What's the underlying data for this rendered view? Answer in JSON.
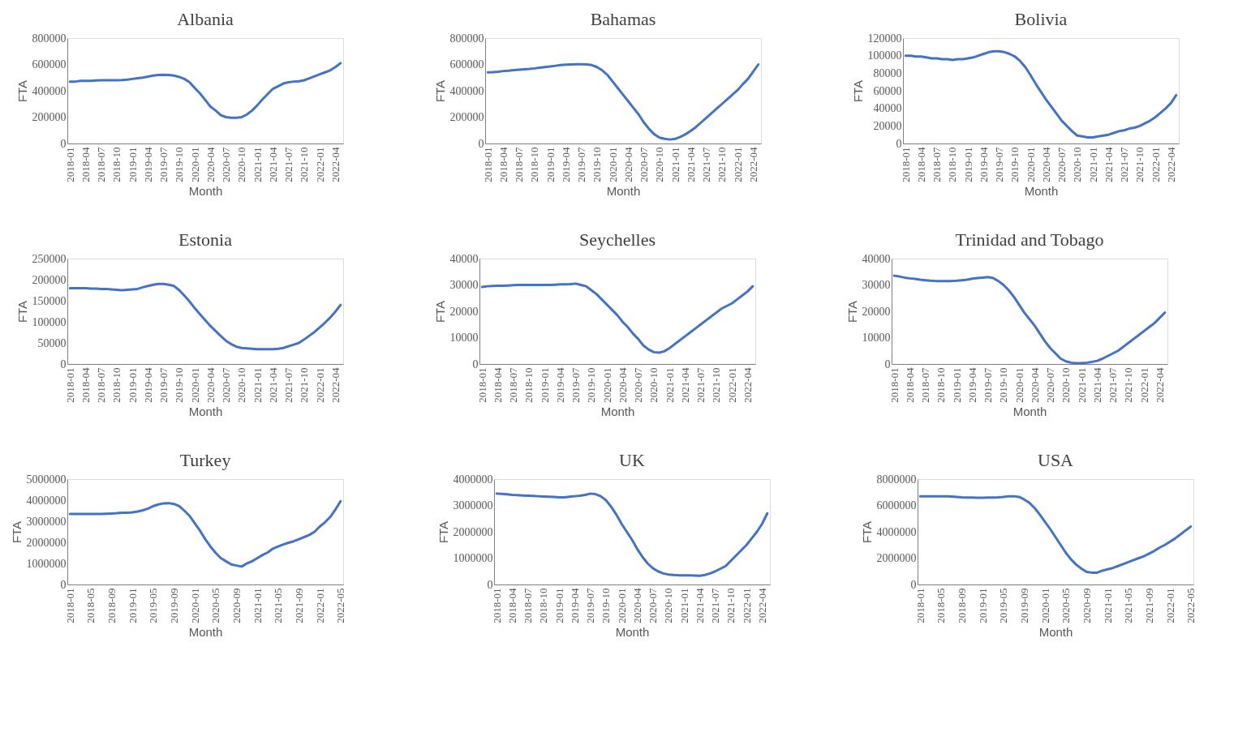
{
  "chart_data": [
    {
      "type": "line",
      "title": "Albania",
      "xlabel": "Month",
      "ylabel": "FTA",
      "grid": false,
      "ylim": [
        0,
        800000
      ],
      "yticks": [
        0,
        200000,
        400000,
        600000,
        800000
      ],
      "categories": [
        "2018-01",
        null,
        null,
        "2018-04",
        null,
        null,
        "2018-07",
        null,
        null,
        "2018-10",
        null,
        null,
        "2019-01",
        null,
        null,
        "2019-04",
        null,
        null,
        "2019-07",
        null,
        null,
        "2019-10",
        null,
        null,
        "2020-01",
        null,
        null,
        "2020-04",
        null,
        null,
        "2020-07",
        null,
        null,
        "2020-10",
        null,
        null,
        "2021-01",
        null,
        null,
        "2021-04",
        null,
        null,
        "2021-07",
        null,
        null,
        "2021-10",
        null,
        null,
        "2022-01",
        null,
        null,
        "2022-04",
        null
      ],
      "series": [
        {
          "color": "#4472c4",
          "values": [
            470000,
            470000,
            475000,
            475000,
            475000,
            478000,
            480000,
            480000,
            480000,
            480000,
            482000,
            485000,
            490000,
            495000,
            500000,
            508000,
            515000,
            520000,
            522000,
            520000,
            515000,
            505000,
            490000,
            465000,
            420000,
            380000,
            330000,
            280000,
            250000,
            215000,
            200000,
            195000,
            195000,
            200000,
            220000,
            250000,
            290000,
            335000,
            375000,
            415000,
            435000,
            455000,
            465000,
            470000,
            472000,
            480000,
            495000,
            510000,
            525000,
            540000,
            555000,
            580000,
            610000
          ]
        }
      ]
    },
    {
      "type": "line",
      "title": "Bahamas",
      "xlabel": "Month",
      "ylabel": "FTA",
      "grid": false,
      "ylim": [
        0,
        800000
      ],
      "yticks": [
        0,
        200000,
        400000,
        600000,
        800000
      ],
      "categories": [
        "2018-01",
        null,
        null,
        "2018-04",
        null,
        null,
        "2018-07",
        null,
        null,
        "2018-10",
        null,
        null,
        "2019-01",
        null,
        null,
        "2019-04",
        null,
        null,
        "2019-07",
        null,
        null,
        "2019-10",
        null,
        null,
        "2020-01",
        null,
        null,
        "2020-04",
        null,
        null,
        "2020-07",
        null,
        null,
        "2020-10",
        null,
        null,
        "2021-01",
        null,
        null,
        "2021-04",
        null,
        null,
        "2021-07",
        null,
        null,
        "2021-10",
        null,
        null,
        "2022-01",
        null,
        null,
        "2022-04",
        null
      ],
      "series": [
        {
          "color": "#4472c4",
          "values": [
            540000,
            542000,
            545000,
            550000,
            553000,
            557000,
            560000,
            563000,
            566000,
            570000,
            575000,
            580000,
            585000,
            590000,
            595000,
            598000,
            600000,
            602000,
            602000,
            600000,
            595000,
            580000,
            555000,
            520000,
            470000,
            420000,
            370000,
            320000,
            270000,
            220000,
            160000,
            110000,
            70000,
            45000,
            35000,
            30000,
            35000,
            50000,
            70000,
            95000,
            125000,
            160000,
            195000,
            230000,
            265000,
            300000,
            335000,
            370000,
            405000,
            450000,
            490000,
            545000,
            600000
          ]
        }
      ]
    },
    {
      "type": "line",
      "title": "Bolivia",
      "xlabel": "Month",
      "ylabel": "FTA",
      "grid": false,
      "ylim": [
        0,
        120000
      ],
      "yticks": [
        0,
        20000,
        40000,
        60000,
        80000,
        100000,
        120000
      ],
      "categories": [
        "2018-01",
        null,
        null,
        "2018-04",
        null,
        null,
        "2018-07",
        null,
        null,
        "2018-10",
        null,
        null,
        "2019-01",
        null,
        null,
        "2019-04",
        null,
        null,
        "2019-07",
        null,
        null,
        "2019-10",
        null,
        null,
        "2020-01",
        null,
        null,
        "2020-04",
        null,
        null,
        "2020-07",
        null,
        null,
        "2020-10",
        null,
        null,
        "2021-01",
        null,
        null,
        "2021-04",
        null,
        null,
        "2021-07",
        null,
        null,
        "2021-10",
        null,
        null,
        "2022-01",
        null,
        null,
        "2022-04",
        null
      ],
      "series": [
        {
          "color": "#4472c4",
          "values": [
            100000,
            100000,
            99000,
            99000,
            98000,
            97000,
            97000,
            96000,
            96000,
            95000,
            96000,
            96000,
            97000,
            98000,
            100000,
            102000,
            104000,
            105000,
            105000,
            104000,
            102000,
            99000,
            94000,
            87000,
            78000,
            68000,
            59000,
            50000,
            42000,
            34000,
            26000,
            20000,
            14000,
            9000,
            8000,
            7000,
            7000,
            8000,
            9000,
            10000,
            12000,
            14000,
            15000,
            17000,
            18000,
            20000,
            23000,
            26000,
            30000,
            35000,
            40000,
            46000,
            55000
          ]
        }
      ]
    },
    {
      "type": "line",
      "title": "Estonia",
      "xlabel": "Month",
      "ylabel": "FTA",
      "grid": false,
      "ylim": [
        0,
        250000
      ],
      "yticks": [
        0,
        50000,
        100000,
        150000,
        200000,
        250000
      ],
      "categories": [
        "2018-01",
        null,
        null,
        "2018-04",
        null,
        null,
        "2018-07",
        null,
        null,
        "2018-10",
        null,
        null,
        "2019-01",
        null,
        null,
        "2019-04",
        null,
        null,
        "2019-07",
        null,
        null,
        "2019-10",
        null,
        null,
        "2020-01",
        null,
        null,
        "2020-04",
        null,
        null,
        "2020-07",
        null,
        null,
        "2020-10",
        null,
        null,
        "2021-01",
        null,
        null,
        "2021-04",
        null,
        null,
        "2021-07",
        null,
        null,
        "2021-10",
        null,
        null,
        "2022-01",
        null,
        null,
        "2022-04",
        null
      ],
      "series": [
        {
          "color": "#4472c4",
          "values": [
            180000,
            180000,
            180000,
            180000,
            179000,
            179000,
            178000,
            178000,
            177000,
            176000,
            175000,
            176000,
            177000,
            178000,
            182000,
            185000,
            188000,
            190000,
            190000,
            188000,
            185000,
            175000,
            162000,
            148000,
            132000,
            118000,
            104000,
            90000,
            78000,
            66000,
            55000,
            47000,
            41000,
            38000,
            37000,
            36000,
            35000,
            35000,
            35000,
            35000,
            36000,
            38000,
            42000,
            46000,
            50000,
            58000,
            67000,
            76000,
            87000,
            98000,
            110000,
            124000,
            140000
          ]
        }
      ]
    },
    {
      "type": "line",
      "title": "Seychelles",
      "xlabel": "Month",
      "ylabel": "FTA",
      "grid": false,
      "ylim": [
        0,
        40000
      ],
      "yticks": [
        0,
        10000,
        20000,
        30000,
        40000
      ],
      "categories": [
        "2018-01",
        null,
        null,
        "2018-04",
        null,
        null,
        "2018-07",
        null,
        null,
        "2018-10",
        null,
        null,
        "2019-01",
        null,
        null,
        "2019-04",
        null,
        null,
        "2019-07",
        null,
        null,
        "2019-10",
        null,
        null,
        "2020-01",
        null,
        null,
        "2020-04",
        null,
        null,
        "2020-07",
        null,
        null,
        "2020-10",
        null,
        null,
        "2021-01",
        null,
        null,
        "2021-04",
        null,
        null,
        "2021-07",
        null,
        null,
        "2021-10",
        null,
        null,
        "2022-01",
        null,
        null,
        "2022-04",
        null
      ],
      "series": [
        {
          "color": "#4472c4",
          "values": [
            29200,
            29500,
            29600,
            29700,
            29700,
            29800,
            29900,
            30000,
            30000,
            30000,
            30000,
            30000,
            30000,
            30000,
            30100,
            30200,
            30200,
            30300,
            30500,
            30000,
            29500,
            28000,
            26500,
            24500,
            22500,
            20500,
            18500,
            16000,
            14000,
            11500,
            9500,
            7000,
            5500,
            4500,
            4300,
            4800,
            6000,
            7500,
            9000,
            10500,
            12000,
            13500,
            15000,
            16500,
            18000,
            19500,
            21000,
            22000,
            23000,
            24500,
            26000,
            27500,
            29500
          ]
        }
      ]
    },
    {
      "type": "line",
      "title": "Trinidad and Tobago",
      "xlabel": "Month",
      "ylabel": "FTA",
      "grid": false,
      "ylim": [
        0,
        40000
      ],
      "yticks": [
        0,
        10000,
        20000,
        30000,
        40000
      ],
      "categories": [
        "2018-01",
        null,
        null,
        "2018-04",
        null,
        null,
        "2018-07",
        null,
        null,
        "2018-10",
        null,
        null,
        "2019-01",
        null,
        null,
        "2019-04",
        null,
        null,
        "2019-07",
        null,
        null,
        "2019-10",
        null,
        null,
        "2020-01",
        null,
        null,
        "2020-04",
        null,
        null,
        "2020-07",
        null,
        null,
        "2020-10",
        null,
        null,
        "2021-01",
        null,
        null,
        "2021-04",
        null,
        null,
        "2021-07",
        null,
        null,
        "2021-10",
        null,
        null,
        "2022-01",
        null,
        null,
        "2022-04",
        null
      ],
      "series": [
        {
          "color": "#4472c4",
          "values": [
            33500,
            33200,
            32800,
            32500,
            32300,
            32000,
            31800,
            31600,
            31500,
            31500,
            31500,
            31500,
            31600,
            31800,
            32000,
            32400,
            32600,
            32800,
            33000,
            32600,
            31500,
            30000,
            28000,
            25500,
            22500,
            19500,
            17000,
            14500,
            11500,
            8500,
            6000,
            4000,
            2000,
            1000,
            500,
            300,
            300,
            500,
            800,
            1200,
            2000,
            3000,
            4000,
            5000,
            6500,
            8000,
            9500,
            11000,
            12500,
            14000,
            15500,
            17500,
            19500
          ]
        }
      ]
    },
    {
      "type": "line",
      "title": "Turkey",
      "xlabel": "Month",
      "ylabel": "FTA",
      "grid": false,
      "ylim": [
        0,
        5000000
      ],
      "yticks": [
        0,
        1000000,
        2000000,
        3000000,
        4000000,
        5000000
      ],
      "categories": [
        "2018-01",
        null,
        null,
        null,
        "2018-05",
        null,
        null,
        null,
        "2018-09",
        null,
        null,
        null,
        "2019-01",
        null,
        null,
        null,
        "2019-05",
        null,
        null,
        null,
        "2019-09",
        null,
        null,
        null,
        "2020-01",
        null,
        null,
        null,
        "2020-05",
        null,
        null,
        null,
        "2020-09",
        null,
        null,
        null,
        "2021-01",
        null,
        null,
        null,
        "2021-05",
        null,
        null,
        null,
        "2021-09",
        null,
        null,
        null,
        "2022-01",
        null,
        null,
        null,
        "2022-05"
      ],
      "series": [
        {
          "color": "#4472c4",
          "values": [
            3350000,
            3350000,
            3350000,
            3350000,
            3350000,
            3350000,
            3350000,
            3360000,
            3370000,
            3380000,
            3400000,
            3400000,
            3420000,
            3460000,
            3520000,
            3600000,
            3720000,
            3800000,
            3850000,
            3860000,
            3820000,
            3720000,
            3500000,
            3250000,
            2900000,
            2550000,
            2150000,
            1800000,
            1500000,
            1250000,
            1100000,
            950000,
            900000,
            850000,
            1000000,
            1100000,
            1250000,
            1400000,
            1520000,
            1700000,
            1800000,
            1900000,
            1980000,
            2050000,
            2150000,
            2250000,
            2350000,
            2500000,
            2750000,
            2950000,
            3200000,
            3550000,
            3950000
          ]
        }
      ]
    },
    {
      "type": "line",
      "title": "UK",
      "xlabel": "Month",
      "ylabel": "FTA",
      "grid": false,
      "ylim": [
        0,
        4000000
      ],
      "yticks": [
        0,
        1000000,
        2000000,
        3000000,
        4000000
      ],
      "categories": [
        "2018-01",
        null,
        null,
        "2018-04",
        null,
        null,
        "2018-07",
        null,
        null,
        "2018-10",
        null,
        null,
        "2019-01",
        null,
        null,
        "2019-04",
        null,
        null,
        "2019-07",
        null,
        null,
        "2019-10",
        null,
        null,
        "2020-01",
        null,
        null,
        "2020-04",
        null,
        null,
        "2020-07",
        null,
        null,
        "2020-10",
        null,
        null,
        "2021-01",
        null,
        null,
        "2021-04",
        null,
        null,
        "2021-07",
        null,
        null,
        "2021-10",
        null,
        null,
        "2022-01",
        null,
        null,
        "2022-04",
        null
      ],
      "series": [
        {
          "color": "#4472c4",
          "values": [
            3450000,
            3440000,
            3420000,
            3400000,
            3390000,
            3380000,
            3370000,
            3360000,
            3350000,
            3340000,
            3330000,
            3320000,
            3310000,
            3310000,
            3330000,
            3350000,
            3370000,
            3400000,
            3450000,
            3430000,
            3350000,
            3200000,
            2950000,
            2650000,
            2300000,
            2000000,
            1700000,
            1350000,
            1050000,
            800000,
            620000,
            500000,
            420000,
            380000,
            360000,
            350000,
            350000,
            350000,
            340000,
            330000,
            360000,
            420000,
            500000,
            600000,
            700000,
            900000,
            1100000,
            1300000,
            1500000,
            1750000,
            2000000,
            2300000,
            2700000
          ]
        }
      ]
    },
    {
      "type": "line",
      "title": "USA",
      "xlabel": "Month",
      "ylabel": "FTA",
      "grid": false,
      "ylim": [
        0,
        8000000
      ],
      "yticks": [
        0,
        2000000,
        4000000,
        6000000,
        8000000
      ],
      "categories": [
        "2018-01",
        null,
        null,
        null,
        "2018-05",
        null,
        null,
        null,
        "2018-09",
        null,
        null,
        null,
        "2019-01",
        null,
        null,
        null,
        "2019-05",
        null,
        null,
        null,
        "2019-09",
        null,
        null,
        null,
        "2020-01",
        null,
        null,
        null,
        "2020-05",
        null,
        null,
        null,
        "2020-09",
        null,
        null,
        null,
        "2021-01",
        null,
        null,
        null,
        "2021-05",
        null,
        null,
        null,
        "2021-09",
        null,
        null,
        null,
        "2022-01",
        null,
        null,
        null,
        "2022-05"
      ],
      "series": [
        {
          "color": "#4472c4",
          "values": [
            6700000,
            6700000,
            6700000,
            6700000,
            6700000,
            6700000,
            6680000,
            6650000,
            6620000,
            6600000,
            6600000,
            6580000,
            6580000,
            6600000,
            6600000,
            6620000,
            6650000,
            6700000,
            6700000,
            6650000,
            6450000,
            6200000,
            5800000,
            5300000,
            4750000,
            4200000,
            3600000,
            3000000,
            2400000,
            1900000,
            1500000,
            1200000,
            950000,
            900000,
            900000,
            1050000,
            1150000,
            1250000,
            1400000,
            1550000,
            1700000,
            1850000,
            2000000,
            2150000,
            2350000,
            2550000,
            2800000,
            3000000,
            3250000,
            3500000,
            3800000,
            4100000,
            4400000
          ]
        }
      ]
    }
  ]
}
